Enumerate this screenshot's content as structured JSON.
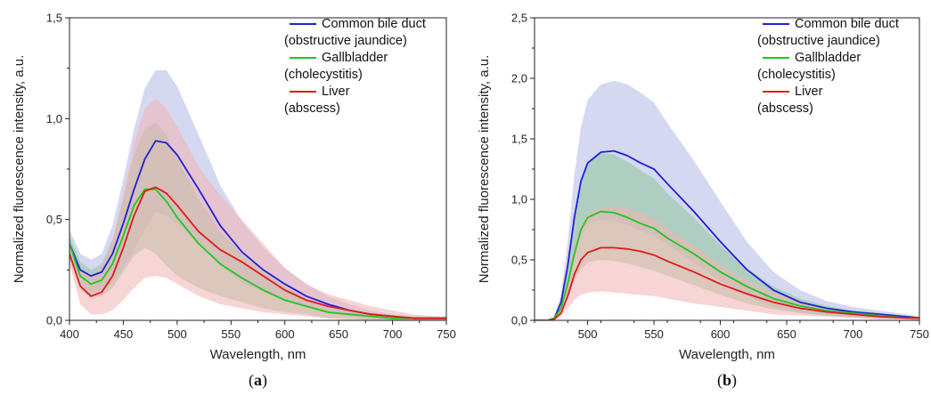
{
  "chart_data": [
    {
      "type": "line",
      "panel_label": {
        "open": "(",
        "letter": "a",
        "close": ")"
      },
      "xlabel": "Wavelength, nm",
      "ylabel": "Normalized fluorescence intensity, a.u.",
      "xlim": [
        400,
        750
      ],
      "ylim": [
        0,
        1.5
      ],
      "xticks": [
        400,
        450,
        500,
        550,
        600,
        650,
        700,
        750
      ],
      "yticks": [
        "0,0",
        "0,5",
        "1,0",
        "1,5"
      ],
      "ytick_values": [
        0,
        0.5,
        1.0,
        1.5
      ],
      "grid": false,
      "legend_position": "top-right",
      "legend": [
        {
          "lines": [
            "Common bile duct",
            "(obstructive jaundice)"
          ],
          "color": "#1f1fd6"
        },
        {
          "lines": [
            "Gallbladder",
            "(cholecystitis)"
          ],
          "color": "#1ec81e"
        },
        {
          "lines": [
            "Liver",
            "(abscess)"
          ],
          "color": "#e01a1a"
        }
      ],
      "series": [
        {
          "color": "#1f1fd6",
          "band_color": "#b3b8e6",
          "x": [
            400,
            410,
            420,
            430,
            440,
            450,
            460,
            470,
            480,
            490,
            500,
            520,
            540,
            560,
            580,
            600,
            620,
            640,
            660,
            680,
            700,
            720,
            740,
            750
          ],
          "y": [
            0.38,
            0.25,
            0.22,
            0.24,
            0.33,
            0.48,
            0.65,
            0.8,
            0.89,
            0.88,
            0.82,
            0.65,
            0.47,
            0.34,
            0.25,
            0.18,
            0.12,
            0.08,
            0.05,
            0.03,
            0.02,
            0.01,
            0.01,
            0.01
          ],
          "upper": [
            0.45,
            0.33,
            0.3,
            0.33,
            0.47,
            0.7,
            0.95,
            1.15,
            1.24,
            1.24,
            1.16,
            0.92,
            0.67,
            0.49,
            0.36,
            0.26,
            0.18,
            0.12,
            0.08,
            0.05,
            0.03,
            0.02,
            0.02,
            0.02
          ],
          "lower": [
            0.31,
            0.17,
            0.14,
            0.15,
            0.19,
            0.26,
            0.35,
            0.45,
            0.54,
            0.52,
            0.48,
            0.38,
            0.27,
            0.19,
            0.14,
            0.1,
            0.06,
            0.04,
            0.02,
            0.01,
            0.0,
            0.0,
            0.0,
            0.0
          ]
        },
        {
          "color": "#1ec81e",
          "band_color": "#8fc79a",
          "x": [
            400,
            410,
            420,
            430,
            440,
            450,
            460,
            470,
            480,
            490,
            500,
            520,
            540,
            560,
            580,
            600,
            620,
            640,
            660,
            680,
            700,
            720,
            740,
            750
          ],
          "y": [
            0.38,
            0.22,
            0.18,
            0.2,
            0.28,
            0.42,
            0.57,
            0.65,
            0.65,
            0.59,
            0.51,
            0.38,
            0.28,
            0.21,
            0.15,
            0.1,
            0.07,
            0.04,
            0.03,
            0.02,
            0.01,
            0.01,
            0.01,
            0.01
          ],
          "upper": [
            0.42,
            0.29,
            0.25,
            0.28,
            0.4,
            0.6,
            0.82,
            0.95,
            0.98,
            0.92,
            0.8,
            0.6,
            0.44,
            0.33,
            0.24,
            0.17,
            0.11,
            0.07,
            0.05,
            0.03,
            0.02,
            0.02,
            0.01,
            0.01
          ],
          "lower": [
            0.33,
            0.15,
            0.11,
            0.12,
            0.16,
            0.24,
            0.32,
            0.36,
            0.33,
            0.27,
            0.22,
            0.16,
            0.12,
            0.09,
            0.06,
            0.04,
            0.03,
            0.01,
            0.01,
            0.0,
            0.0,
            0.0,
            0.0,
            0.0
          ]
        },
        {
          "color": "#e01a1a",
          "band_color": "#f2b3b3",
          "x": [
            400,
            410,
            420,
            430,
            440,
            450,
            460,
            470,
            480,
            490,
            500,
            520,
            540,
            560,
            580,
            600,
            620,
            640,
            660,
            680,
            700,
            720,
            740,
            750
          ],
          "y": [
            0.33,
            0.17,
            0.12,
            0.14,
            0.22,
            0.36,
            0.52,
            0.64,
            0.66,
            0.63,
            0.57,
            0.44,
            0.35,
            0.29,
            0.22,
            0.15,
            0.1,
            0.07,
            0.05,
            0.03,
            0.02,
            0.01,
            0.01,
            0.01
          ],
          "upper": [
            0.38,
            0.26,
            0.22,
            0.26,
            0.4,
            0.62,
            0.88,
            1.05,
            1.1,
            1.05,
            0.96,
            0.76,
            0.62,
            0.5,
            0.38,
            0.26,
            0.18,
            0.13,
            0.1,
            0.07,
            0.05,
            0.03,
            0.02,
            0.02
          ],
          "lower": [
            0.28,
            0.08,
            0.03,
            0.03,
            0.05,
            0.1,
            0.16,
            0.21,
            0.22,
            0.21,
            0.18,
            0.12,
            0.08,
            0.06,
            0.04,
            0.03,
            0.02,
            0.01,
            0.0,
            0.0,
            0.0,
            0.0,
            0.0,
            0.0
          ]
        }
      ]
    },
    {
      "type": "line",
      "panel_label": {
        "open": "(",
        "letter": "b",
        "close": ")"
      },
      "xlabel": "Wavelength, nm",
      "ylabel": "Normalized fluorescence intensity, a.u.",
      "xlim": [
        460,
        750
      ],
      "ylim": [
        0,
        2.5
      ],
      "xticks": [
        500,
        550,
        600,
        650,
        700,
        750
      ],
      "yticks": [
        "0,0",
        "0,5",
        "1,0",
        "1,5",
        "2,0",
        "2,5"
      ],
      "ytick_values": [
        0,
        0.5,
        1.0,
        1.5,
        2.0,
        2.5
      ],
      "grid": false,
      "legend_position": "top-right",
      "legend": [
        {
          "lines": [
            "Common bile duct",
            "(obstructive jaundice)"
          ],
          "color": "#1f1fd6"
        },
        {
          "lines": [
            "Gallbladder",
            "(cholecystitis)"
          ],
          "color": "#1ec81e"
        },
        {
          "lines": [
            "Liver",
            "(abscess)"
          ],
          "color": "#e01a1a"
        }
      ],
      "series": [
        {
          "color": "#1f1fd6",
          "band_color": "#b3b8e6",
          "x": [
            460,
            470,
            475,
            480,
            485,
            490,
            495,
            500,
            510,
            520,
            530,
            540,
            550,
            560,
            580,
            600,
            620,
            640,
            660,
            680,
            700,
            720,
            740,
            750
          ],
          "y": [
            0.0,
            0.0,
            0.02,
            0.15,
            0.45,
            0.85,
            1.15,
            1.3,
            1.39,
            1.4,
            1.36,
            1.3,
            1.25,
            1.13,
            0.9,
            0.65,
            0.42,
            0.25,
            0.15,
            0.1,
            0.07,
            0.05,
            0.03,
            0.02
          ],
          "upper": [
            0.0,
            0.0,
            0.03,
            0.22,
            0.65,
            1.2,
            1.6,
            1.82,
            1.95,
            1.98,
            1.95,
            1.88,
            1.8,
            1.63,
            1.32,
            0.98,
            0.65,
            0.4,
            0.25,
            0.16,
            0.11,
            0.08,
            0.05,
            0.03
          ],
          "lower": [
            0.0,
            0.0,
            0.01,
            0.08,
            0.25,
            0.5,
            0.7,
            0.8,
            0.83,
            0.82,
            0.79,
            0.74,
            0.7,
            0.63,
            0.48,
            0.33,
            0.2,
            0.11,
            0.06,
            0.04,
            0.02,
            0.01,
            0.01,
            0.0
          ]
        },
        {
          "color": "#1ec81e",
          "band_color": "#8fc79a",
          "x": [
            460,
            470,
            475,
            480,
            485,
            490,
            495,
            500,
            510,
            520,
            530,
            540,
            550,
            560,
            580,
            600,
            620,
            640,
            660,
            680,
            700,
            720,
            740,
            750
          ],
          "y": [
            0.0,
            0.0,
            0.02,
            0.1,
            0.3,
            0.55,
            0.75,
            0.85,
            0.9,
            0.89,
            0.85,
            0.8,
            0.76,
            0.68,
            0.55,
            0.4,
            0.28,
            0.18,
            0.12,
            0.08,
            0.06,
            0.04,
            0.02,
            0.02
          ],
          "upper": [
            0.0,
            0.0,
            0.03,
            0.15,
            0.45,
            0.85,
            1.15,
            1.3,
            1.38,
            1.37,
            1.31,
            1.24,
            1.17,
            1.05,
            0.85,
            0.62,
            0.43,
            0.28,
            0.18,
            0.12,
            0.08,
            0.06,
            0.04,
            0.03
          ],
          "lower": [
            0.0,
            0.0,
            0.01,
            0.06,
            0.18,
            0.32,
            0.42,
            0.48,
            0.5,
            0.49,
            0.47,
            0.44,
            0.41,
            0.37,
            0.29,
            0.21,
            0.14,
            0.09,
            0.06,
            0.04,
            0.03,
            0.02,
            0.01,
            0.01
          ]
        },
        {
          "color": "#e01a1a",
          "band_color": "#f2b3b3",
          "x": [
            460,
            470,
            475,
            480,
            485,
            490,
            495,
            500,
            510,
            520,
            530,
            540,
            550,
            560,
            580,
            600,
            620,
            640,
            660,
            680,
            700,
            720,
            740,
            750
          ],
          "y": [
            0.0,
            0.0,
            0.01,
            0.06,
            0.2,
            0.38,
            0.5,
            0.56,
            0.6,
            0.6,
            0.59,
            0.57,
            0.54,
            0.49,
            0.4,
            0.3,
            0.22,
            0.15,
            0.1,
            0.07,
            0.05,
            0.03,
            0.02,
            0.02
          ],
          "upper": [
            0.0,
            0.0,
            0.02,
            0.12,
            0.35,
            0.62,
            0.8,
            0.88,
            0.93,
            0.94,
            0.93,
            0.89,
            0.84,
            0.76,
            0.62,
            0.46,
            0.33,
            0.23,
            0.15,
            0.1,
            0.07,
            0.05,
            0.03,
            0.02
          ],
          "lower": [
            0.0,
            0.0,
            0.0,
            0.03,
            0.1,
            0.17,
            0.21,
            0.23,
            0.24,
            0.23,
            0.22,
            0.21,
            0.2,
            0.18,
            0.14,
            0.11,
            0.08,
            0.05,
            0.04,
            0.03,
            0.02,
            0.01,
            0.01,
            0.0
          ]
        }
      ]
    }
  ]
}
